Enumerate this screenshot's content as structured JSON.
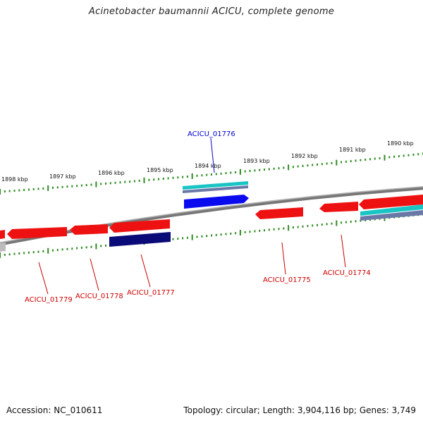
{
  "title": "Acinetobacter baumannii ACICU, complete genome",
  "footer": {
    "accession": "Accession: NC_010611",
    "summary": "Topology: circular; Length: 3,904,116 bp; Genes: 3,749"
  },
  "colors": {
    "backbone": "#8a8a8a",
    "tick": "#2e8b22",
    "gene_red": "#ee1111",
    "gene_blue": "#0a0aee",
    "gene_navy": "#0a0a78",
    "gene_cyan": "#19c4c4",
    "gene_slate": "#6a78a8",
    "label_red": "#cc0000",
    "label_blue": "#0000cc"
  },
  "kbp_labels": [
    "1898 kbp",
    "1897 kbp",
    "1896 kbp",
    "1895 kbp",
    "1894 kbp",
    "1893 kbp",
    "1892 kbp",
    "1891 kbp",
    "1890 kbp"
  ],
  "gene_labels": [
    {
      "name": "ACICU_01776",
      "strand": "forward",
      "color": "blue"
    },
    {
      "name": "ACICU_01779",
      "strand": "reverse",
      "color": "red"
    },
    {
      "name": "ACICU_01778",
      "strand": "reverse",
      "color": "red"
    },
    {
      "name": "ACICU_01777",
      "strand": "reverse",
      "color": "red"
    },
    {
      "name": "ACICU_01775",
      "strand": "reverse",
      "color": "red"
    },
    {
      "name": "ACICU_01774",
      "strand": "reverse",
      "color": "red"
    }
  ]
}
